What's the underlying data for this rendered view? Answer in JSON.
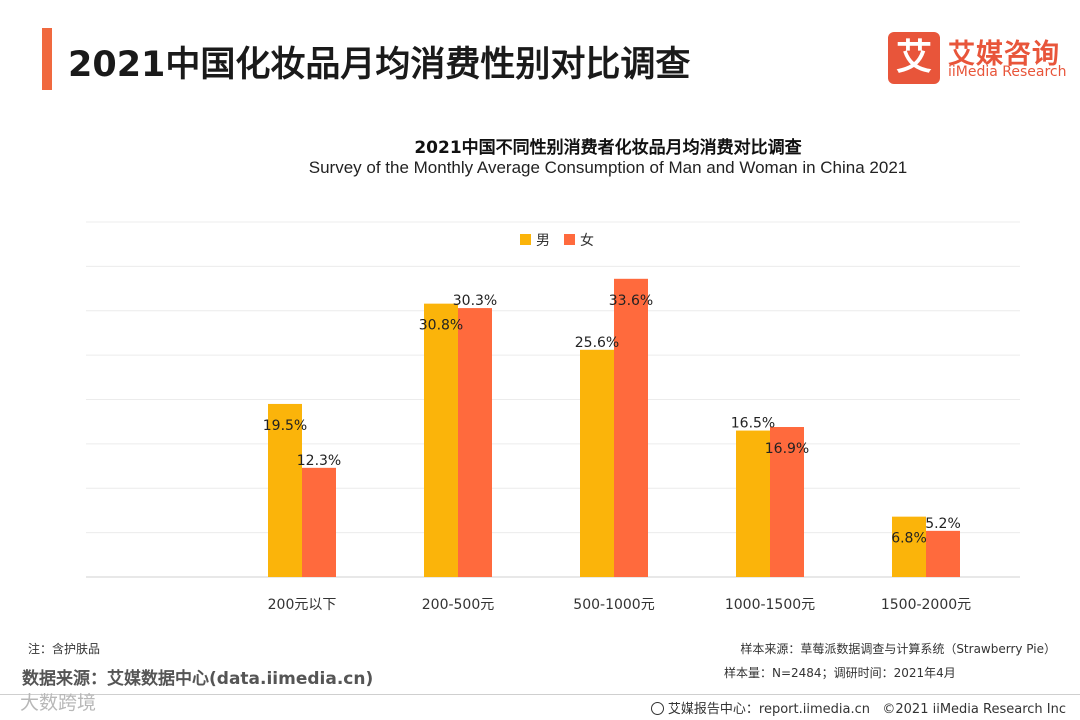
{
  "header": {
    "title": "2021中国化妆品月均消费性别对比调查",
    "logo_mark": "艾",
    "logo_cn": "艾媒咨询",
    "logo_en": "iiMedia Research"
  },
  "chart_data": {
    "type": "bar",
    "title": "2021中国不同性别消费者化妆品月均消费对比调查",
    "subtitle": "Survey of the Monthly Average Consumption of Man and Woman in China 2021",
    "categories": [
      "200元以下",
      "200-500元",
      "500-1000元",
      "1000-1500元",
      "1500-2000元"
    ],
    "series": [
      {
        "name": "男",
        "color": "#fbb40a",
        "values": [
          19.5,
          30.8,
          25.6,
          16.5,
          6.8
        ],
        "labels": [
          "19.5%",
          "30.8%",
          "25.6%",
          "16.5%",
          "6.8%"
        ]
      },
      {
        "name": "女",
        "color": "#ff6a3d",
        "values": [
          12.3,
          30.3,
          33.6,
          16.9,
          5.2
        ],
        "labels": [
          "12.3%",
          "30.3%",
          "33.6%",
          "16.9%",
          "5.2%"
        ]
      }
    ],
    "ylim": [
      0,
      40
    ],
    "grid": true,
    "legend": "top-center",
    "xlabel": "",
    "ylabel": ""
  },
  "footer": {
    "note": "注：含护肤品",
    "source": "数据来源：艾媒数据中心(data.iimedia.cn)",
    "sample_source": "样本来源：草莓派数据调查与计算系统（Strawberry Pie）",
    "sample_size": "样本量：N=2484；调研时间：2021年4月",
    "watermark": "大数跨境",
    "report_center": "艾媒报告中心：report.iimedia.cn",
    "copyright": "©2021  iiMedia Research  Inc"
  }
}
